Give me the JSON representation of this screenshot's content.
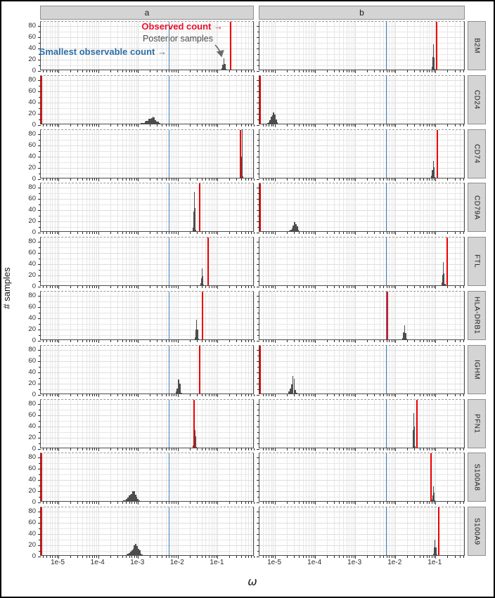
{
  "figure": {
    "facet_col_labels": {
      "a": "a",
      "b": "b"
    },
    "x_axis": {
      "label": "ω",
      "tick_labels": [
        "1e-5",
        "1e-4",
        "1e-3",
        "1e-2",
        "1e-1"
      ]
    },
    "y_axis": {
      "label": "# samples",
      "tick_labels": [
        "0",
        "20",
        "40",
        "60",
        "80"
      ]
    },
    "annotations": {
      "observed": {
        "text": "Observed count →",
        "color": "#e8112d"
      },
      "posterior": {
        "text": "Posterior samples",
        "color": "#4d4d4d"
      },
      "smallest": {
        "text": "Smallest observable count →",
        "color": "#2e6da4"
      }
    },
    "colors": {
      "observed_line": "#ee0000",
      "smallest_observable_line": "#3c7db8",
      "histogram": "#4d4d4d",
      "strip_background": "#d4d4d4",
      "panel_border": "#4a4a4a",
      "grid": "#e7e7e7"
    }
  },
  "chart_data": {
    "type": "histogram-grid",
    "x_scale": "log10",
    "facet_rows": [
      "B2M",
      "CD24",
      "CD74",
      "CD79A",
      "FTL",
      "HLA-DRB1",
      "IGHM",
      "PFN1",
      "S100A8",
      "S100A9"
    ],
    "facet_cols": [
      "a",
      "b"
    ],
    "xlim_a": [
      3.6e-06,
      0.85
    ],
    "xlim_b": [
      4.1e-06,
      0.56
    ],
    "ylim": [
      0,
      88
    ],
    "y_major_ticks": [
      0,
      20,
      40,
      60,
      80
    ],
    "x_decade_ticks": [
      1e-05,
      0.0001,
      0.001,
      0.01,
      0.1
    ],
    "smallest_observable_omega": 0.006,
    "panels": [
      {
        "gene": "B2M",
        "col": "a",
        "observed_omega": 0.21,
        "observed_at_left_edge": false,
        "smallest_observable_omega": 0.006,
        "hist": {
          "center_omega": 0.145,
          "peak_count": 20,
          "width_decades": 0.14
        }
      },
      {
        "gene": "B2M",
        "col": "b",
        "observed_omega": 0.105,
        "observed_at_left_edge": false,
        "smallest_observable_omega": 0.006,
        "hist": {
          "center_omega": 0.09,
          "peak_count": 45,
          "width_decades": 0.09
        }
      },
      {
        "gene": "CD24",
        "col": "a",
        "observed_omega": null,
        "observed_at_left_edge": true,
        "smallest_observable_omega": 0.006,
        "hist": {
          "center_omega": 0.0022,
          "peak_count": 12,
          "width_decades": 0.55
        }
      },
      {
        "gene": "CD24",
        "col": "b",
        "observed_omega": null,
        "observed_at_left_edge": true,
        "smallest_observable_omega": 0.006,
        "hist": {
          "center_omega": 9e-06,
          "peak_count": 20,
          "width_decades": 0.3
        }
      },
      {
        "gene": "CD74",
        "col": "a",
        "observed_omega": 0.38,
        "observed_at_left_edge": false,
        "smallest_observable_omega": 0.006,
        "hist": {
          "center_omega": 0.41,
          "peak_count": 87,
          "width_decades": 0.07
        }
      },
      {
        "gene": "CD74",
        "col": "b",
        "observed_omega": 0.11,
        "observed_at_left_edge": false,
        "smallest_observable_omega": 0.006,
        "hist": {
          "center_omega": 0.088,
          "peak_count": 30,
          "width_decades": 0.11
        }
      },
      {
        "gene": "CD79A",
        "col": "a",
        "observed_omega": 0.035,
        "observed_at_left_edge": false,
        "smallest_observable_omega": 0.006,
        "hist": {
          "center_omega": 0.026,
          "peak_count": 70,
          "width_decades": 0.08
        }
      },
      {
        "gene": "CD79A",
        "col": "b",
        "observed_omega": null,
        "observed_at_left_edge": true,
        "smallest_observable_omega": 0.006,
        "hist": {
          "center_omega": 3.1e-05,
          "peak_count": 16,
          "width_decades": 0.28
        }
      },
      {
        "gene": "FTL",
        "col": "a",
        "observed_omega": 0.059,
        "observed_at_left_edge": false,
        "smallest_observable_omega": 0.006,
        "hist": {
          "center_omega": 0.041,
          "peak_count": 30,
          "width_decades": 0.1
        }
      },
      {
        "gene": "FTL",
        "col": "b",
        "observed_omega": 0.2,
        "observed_at_left_edge": false,
        "smallest_observable_omega": 0.006,
        "hist": {
          "center_omega": 0.16,
          "peak_count": 42,
          "width_decades": 0.09
        }
      },
      {
        "gene": "HLA-DRB1",
        "col": "a",
        "observed_omega": 0.041,
        "observed_at_left_edge": false,
        "smallest_observable_omega": 0.006,
        "hist": {
          "center_omega": 0.03,
          "peak_count": 35,
          "width_decades": 0.1
        }
      },
      {
        "gene": "HLA-DRB1",
        "col": "b",
        "observed_omega": 0.0063,
        "observed_at_left_edge": false,
        "smallest_observable_omega": 0.006,
        "hist": {
          "center_omega": 0.017,
          "peak_count": 25,
          "width_decades": 0.13
        }
      },
      {
        "gene": "IGHM",
        "col": "a",
        "observed_omega": 0.036,
        "observed_at_left_edge": false,
        "smallest_observable_omega": 0.006,
        "hist": {
          "center_omega": 0.0105,
          "peak_count": 25,
          "width_decades": 0.16
        }
      },
      {
        "gene": "IGHM",
        "col": "b",
        "observed_omega": null,
        "observed_at_left_edge": true,
        "smallest_observable_omega": 0.006,
        "hist": {
          "center_omega": 2.8e-05,
          "peak_count": 32,
          "width_decades": 0.22
        }
      },
      {
        "gene": "PFN1",
        "col": "a",
        "observed_omega": 0.026,
        "observed_at_left_edge": false,
        "smallest_observable_omega": 0.006,
        "hist": {
          "center_omega": 0.027,
          "peak_count": 32,
          "width_decades": 0.1
        }
      },
      {
        "gene": "PFN1",
        "col": "b",
        "observed_omega": 0.035,
        "observed_at_left_edge": false,
        "smallest_observable_omega": 0.006,
        "hist": {
          "center_omega": 0.029,
          "peak_count": 62,
          "width_decades": 0.07
        }
      },
      {
        "gene": "S100A8",
        "col": "a",
        "observed_omega": null,
        "observed_at_left_edge": true,
        "smallest_observable_omega": 0.006,
        "hist": {
          "center_omega": 0.00072,
          "peak_count": 18,
          "width_decades": 0.45
        }
      },
      {
        "gene": "S100A8",
        "col": "b",
        "observed_omega": 0.079,
        "observed_at_left_edge": false,
        "smallest_observable_omega": 0.006,
        "hist": {
          "center_omega": 0.089,
          "peak_count": 27,
          "width_decades": 0.1
        }
      },
      {
        "gene": "S100A9",
        "col": "a",
        "observed_omega": null,
        "observed_at_left_edge": true,
        "smallest_observable_omega": 0.006,
        "hist": {
          "center_omega": 0.00085,
          "peak_count": 20,
          "width_decades": 0.45
        }
      },
      {
        "gene": "S100A9",
        "col": "b",
        "observed_omega": 0.123,
        "observed_at_left_edge": false,
        "smallest_observable_omega": 0.006,
        "hist": {
          "center_omega": 0.098,
          "peak_count": 28,
          "width_decades": 0.1
        }
      }
    ]
  }
}
